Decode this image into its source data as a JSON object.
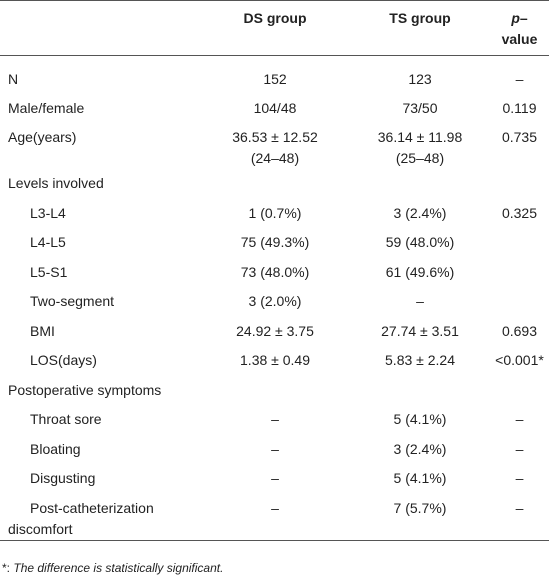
{
  "table": {
    "header": [
      "DS group",
      "TS group",
      "p–\nvalue"
    ],
    "rows": [
      {
        "cells": [
          "N",
          "152",
          "123",
          "–"
        ]
      },
      {
        "cells": [
          "Male/female",
          "104/48",
          "73/50",
          "0.119"
        ]
      },
      {
        "cells": [
          "Age(years)",
          "36.53 ± 12.52\n(24–48)",
          "36.14 ± 11.98\n(25–48)",
          "0.735"
        ]
      },
      {
        "label": "Levels involved",
        "rows": [
          [
            "L3-L4",
            "1 (0.7%)",
            "3 (2.4%)",
            "0.325"
          ],
          [
            "L4-L5",
            "75 (49.3%)",
            "59 (48.0%)"
          ],
          [
            "L5-S1",
            "73 (48.0%)",
            "61 (49.6%)"
          ],
          [
            "Two-segment",
            "3 (2.0%)",
            "–"
          ],
          [
            "BMI",
            "24.92 ± 3.75",
            "27.74 ± 3.51",
            "0.693"
          ],
          [
            "LOS(days)",
            "1.38 ± 0.49",
            "5.83 ± 2.24",
            "<0.001*"
          ]
        ]
      },
      {
        "label": "Postoperative symptoms",
        "rows": [
          [
            "Throat sore",
            "–",
            "5 (4.1%)",
            "–"
          ],
          [
            "Bloating",
            "–",
            "3 (2.4%)",
            "–"
          ],
          [
            "Disgusting",
            "–",
            "5 (4.1%)",
            "–"
          ],
          [
            "Post-catheterization\ndiscomfort",
            "–",
            "7 (5.7%)",
            "–"
          ]
        ]
      }
    ]
  },
  "footnote": {
    "marker": "*:",
    "text": "The difference is statistically significant."
  }
}
